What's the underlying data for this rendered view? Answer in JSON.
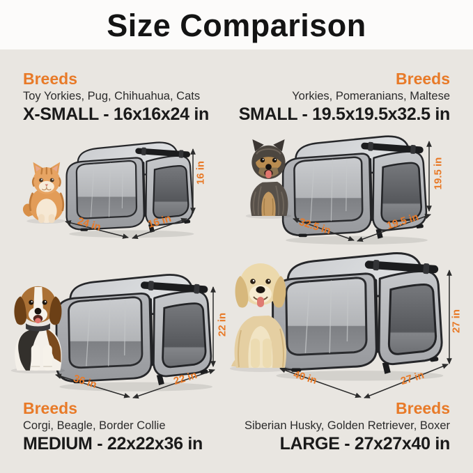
{
  "title": "Size Comparison",
  "colors": {
    "accent": "#e87a28",
    "title_text": "#141414",
    "background": "#e9e6e1",
    "header_background": "#fcfbfa",
    "crate_gray": "#a9abaf"
  },
  "quadrants": [
    {
      "id": "x-small",
      "breeds_heading": "Breeds",
      "breeds": "Toy Yorkies, Pug, Chihuahua, Cats",
      "size_label": "X-SMALL - 16x16x24 in",
      "animal": "kitten",
      "dims": {
        "length": "24 in",
        "width": "16 in",
        "height": "16 in"
      }
    },
    {
      "id": "small",
      "breeds_heading": "Breeds",
      "breeds": "Yorkies, Pomeranians, Maltese",
      "size_label": "SMALL - 19.5x19.5x32.5 in",
      "animal": "yorkshire-terrier",
      "dims": {
        "length": "32.5 in",
        "width": "19.5 in",
        "height": "19.5 in"
      }
    },
    {
      "id": "medium",
      "breeds_heading": "Breeds",
      "breeds": "Corgi, Beagle, Border Collie",
      "size_label": "MEDIUM - 22x22x36 in",
      "animal": "beagle",
      "dims": {
        "length": "36 in",
        "width": "22 in",
        "height": "22 in"
      }
    },
    {
      "id": "large",
      "breeds_heading": "Breeds",
      "breeds": "Siberian Husky, Golden Retriever, Boxer",
      "size_label": "LARGE - 27x27x40 in",
      "animal": "golden-retriever",
      "dims": {
        "length": "40 in",
        "width": "27 in",
        "height": "27 in"
      }
    }
  ]
}
